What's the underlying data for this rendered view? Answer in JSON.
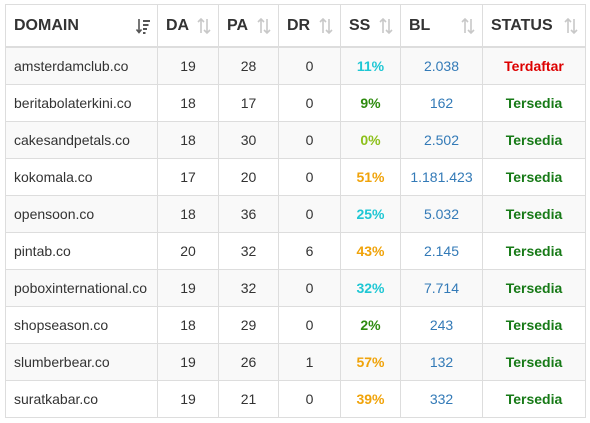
{
  "colors": {
    "teal": "#1fc7d4",
    "green": "#2e8b0f",
    "lime": "#8dc01b",
    "orange": "#f0a30a",
    "blue_link": "#337ab7",
    "red": "#dd0000",
    "status_green": "#177a17"
  },
  "table": {
    "headers": {
      "domain": "DOMAIN",
      "da": "DA",
      "pa": "PA",
      "dr": "DR",
      "ss": "SS",
      "bl": "BL",
      "status": "STATUS"
    },
    "sort_icons": {
      "domain": "sort-amount-desc-icon",
      "other": "sort-arrows-icon"
    },
    "rows": [
      {
        "domain": "amsterdamclub.co",
        "da": "19",
        "pa": "28",
        "dr": "0",
        "ss": "11%",
        "ss_color": "#1fc7d4",
        "bl": "2.038",
        "status": "Terdaftar",
        "status_color": "#dd0000"
      },
      {
        "domain": "beritabolaterkini.co",
        "da": "18",
        "pa": "17",
        "dr": "0",
        "ss": "9%",
        "ss_color": "#2e8b0f",
        "bl": "162",
        "status": "Tersedia",
        "status_color": "#177a17"
      },
      {
        "domain": "cakesandpetals.co",
        "da": "18",
        "pa": "30",
        "dr": "0",
        "ss": "0%",
        "ss_color": "#8dc01b",
        "bl": "2.502",
        "status": "Tersedia",
        "status_color": "#177a17"
      },
      {
        "domain": "kokomala.co",
        "da": "17",
        "pa": "20",
        "dr": "0",
        "ss": "51%",
        "ss_color": "#f0a30a",
        "bl": "1.181.423",
        "status": "Tersedia",
        "status_color": "#177a17"
      },
      {
        "domain": "opensoon.co",
        "da": "18",
        "pa": "36",
        "dr": "0",
        "ss": "25%",
        "ss_color": "#1fc7d4",
        "bl": "5.032",
        "status": "Tersedia",
        "status_color": "#177a17"
      },
      {
        "domain": "pintab.co",
        "da": "20",
        "pa": "32",
        "dr": "6",
        "ss": "43%",
        "ss_color": "#f0a30a",
        "bl": "2.145",
        "status": "Tersedia",
        "status_color": "#177a17"
      },
      {
        "domain": "poboxinternational.co",
        "da": "19",
        "pa": "32",
        "dr": "0",
        "ss": "32%",
        "ss_color": "#1fc7d4",
        "bl": "7.714",
        "status": "Tersedia",
        "status_color": "#177a17"
      },
      {
        "domain": "shopseason.co",
        "da": "18",
        "pa": "29",
        "dr": "0",
        "ss": "2%",
        "ss_color": "#2e8b0f",
        "bl": "243",
        "status": "Tersedia",
        "status_color": "#177a17"
      },
      {
        "domain": "slumberbear.co",
        "da": "19",
        "pa": "26",
        "dr": "1",
        "ss": "57%",
        "ss_color": "#f0a30a",
        "bl": "132",
        "status": "Tersedia",
        "status_color": "#177a17"
      },
      {
        "domain": "suratkabar.co",
        "da": "19",
        "pa": "21",
        "dr": "0",
        "ss": "39%",
        "ss_color": "#f0a30a",
        "bl": "332",
        "status": "Tersedia",
        "status_color": "#177a17"
      }
    ]
  }
}
